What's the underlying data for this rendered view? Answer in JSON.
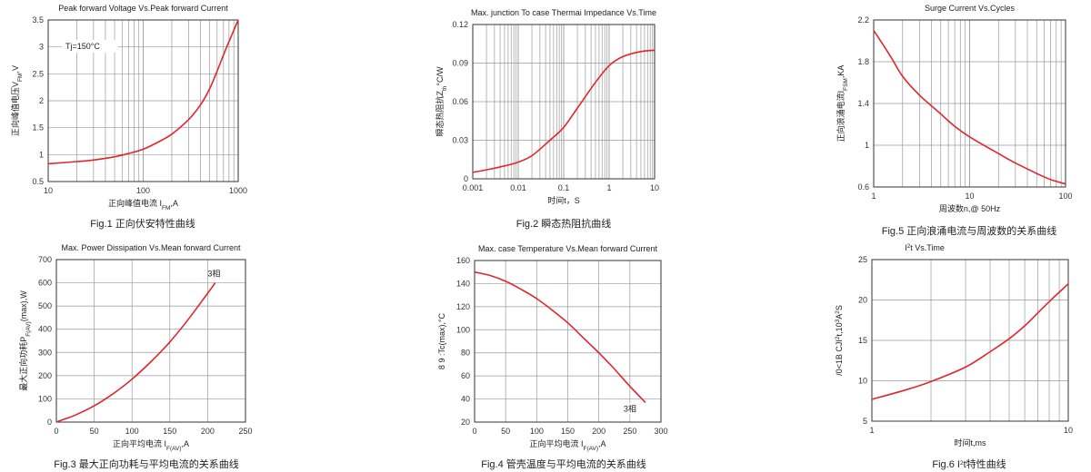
{
  "chart_data": [
    {
      "id": "fig1",
      "type": "line",
      "title": "Peak forward Voltage Vs.Peak forward Current",
      "xlabel": "正向峰值电流 I",
      "xlabel_sub": "FM",
      "xlabel_suffix": ",A",
      "ylabel": "正向峰值电压V",
      "ylabel_sub": "FM",
      "ylabel_suffix": ",V",
      "caption": "Fig.1 正向伏安特性曲线",
      "annotation": "Tj=150°C",
      "xscale": "log",
      "xlim": [
        10,
        1000
      ],
      "ylim": [
        0.5,
        3.5
      ],
      "x_ticks": [
        10,
        100,
        1000
      ],
      "x_tick_labels": [
        "10",
        "100",
        "1000"
      ],
      "y_ticks": [
        0.5,
        1,
        1.5,
        2,
        2.5,
        3,
        3.5
      ],
      "y_tick_labels": [
        "0.5",
        "1",
        "1.5",
        "2",
        "2.5",
        "3",
        "3.5"
      ],
      "series": [
        {
          "x": [
            10,
            20,
            30,
            50,
            70,
            100,
            150,
            200,
            300,
            400,
            500,
            600,
            700,
            800,
            1000
          ],
          "y": [
            0.83,
            0.87,
            0.9,
            0.96,
            1.02,
            1.1,
            1.25,
            1.38,
            1.65,
            1.92,
            2.22,
            2.55,
            2.85,
            3.1,
            3.5
          ]
        }
      ]
    },
    {
      "id": "fig2",
      "type": "line",
      "title": "Max. junction To case Thermai Impedance Vs.Time",
      "xlabel": "时间t，S",
      "ylabel": "瞬态热阻抗Z",
      "ylabel_sub": "th",
      "ylabel_suffix": "°C/W",
      "caption": "Fig.2 瞬态热阻抗曲线",
      "xscale": "log",
      "xlim": [
        0.001,
        10
      ],
      "ylim": [
        0,
        0.12
      ],
      "x_ticks": [
        0.001,
        0.01,
        0.1,
        1,
        10
      ],
      "x_tick_labels": [
        "0.001",
        "0.01",
        "0.1",
        "1",
        "10"
      ],
      "y_ticks": [
        0,
        0.03,
        0.06,
        0.09,
        0.12
      ],
      "y_tick_labels": [
        "0",
        "0.03",
        "0.06",
        "0.09",
        "0.12"
      ],
      "series": [
        {
          "x": [
            0.001,
            0.002,
            0.005,
            0.01,
            0.02,
            0.05,
            0.1,
            0.2,
            0.5,
            1,
            2,
            5,
            10
          ],
          "y": [
            0.005,
            0.007,
            0.01,
            0.013,
            0.018,
            0.03,
            0.04,
            0.055,
            0.075,
            0.088,
            0.095,
            0.099,
            0.1
          ]
        }
      ]
    },
    {
      "id": "fig5",
      "type": "line",
      "title": "Surge Current Vs.Cycles",
      "xlabel": "周波数n,@ 50Hz",
      "ylabel": "正向浪涌电流I",
      "ylabel_sub": "FSM",
      "ylabel_suffix": ",KA",
      "caption": "Fig.5 正向浪涌电流与周波数的关系曲线",
      "xscale": "log",
      "xlim": [
        1,
        100
      ],
      "ylim": [
        0.6,
        2.2
      ],
      "x_ticks": [
        1,
        10,
        100
      ],
      "x_tick_labels": [
        "1",
        "10",
        "100"
      ],
      "y_ticks": [
        0.6,
        1,
        1.4,
        1.8,
        2.2
      ],
      "y_tick_labels": [
        "0.6",
        "1",
        "1.4",
        "1.8",
        "2.2"
      ],
      "series": [
        {
          "x": [
            1,
            1.5,
            2,
            3,
            5,
            7,
            10,
            20,
            30,
            50,
            70,
            100
          ],
          "y": [
            2.1,
            1.85,
            1.66,
            1.48,
            1.3,
            1.18,
            1.08,
            0.92,
            0.83,
            0.73,
            0.67,
            0.63
          ]
        }
      ]
    },
    {
      "id": "fig3",
      "type": "line",
      "title": "Max. Power Dissipation Vs.Mean forward Current",
      "xlabel": "正向平均电流 I",
      "xlabel_sub": "F(AV)",
      "xlabel_suffix": ",A",
      "ylabel": "最大正向功耗P",
      "ylabel_sub": "F(AV)",
      "ylabel_suffix": "(max),W",
      "caption": "Fig.3 最大正向功耗与平均电流的关系曲线",
      "annotation": "3相",
      "xlim": [
        0,
        250
      ],
      "ylim": [
        0,
        700
      ],
      "x_ticks": [
        0,
        50,
        100,
        150,
        200,
        250
      ],
      "x_tick_labels": [
        "0",
        "50",
        "100",
        "150",
        "200",
        "250"
      ],
      "y_ticks": [
        0,
        100,
        200,
        300,
        400,
        500,
        600,
        700
      ],
      "y_tick_labels": [
        "0",
        "100",
        "200",
        "300",
        "400",
        "500",
        "600",
        "700"
      ],
      "series": [
        {
          "x": [
            0,
            10,
            25,
            50,
            75,
            100,
            125,
            150,
            175,
            200,
            210
          ],
          "y": [
            0,
            12,
            30,
            70,
            122,
            185,
            260,
            345,
            445,
            555,
            600
          ]
        }
      ]
    },
    {
      "id": "fig4",
      "type": "line",
      "title": "Max. case Temperature Vs.Mean forward Current",
      "xlabel": "正向平均电流 I",
      "xlabel_sub": "F(AV)",
      "xlabel_suffix": ",A",
      "ylabel": "Tc(max),°C",
      "ylabel_prefix": "8 9 :",
      "caption": "Fig.4 管壳温度与平均电流的关系曲线",
      "annotation": "3相",
      "xlim": [
        0,
        300
      ],
      "ylim": [
        20,
        160
      ],
      "x_ticks": [
        0,
        50,
        100,
        150,
        200,
        250,
        300
      ],
      "x_tick_labels": [
        "0",
        "50",
        "100",
        "150",
        "200",
        "250",
        "300"
      ],
      "y_ticks": [
        20,
        40,
        60,
        80,
        100,
        120,
        140,
        160
      ],
      "y_tick_labels": [
        "20",
        "40",
        "60",
        "80",
        "100",
        "120",
        "140",
        "160"
      ],
      "series": [
        {
          "x": [
            0,
            25,
            50,
            75,
            100,
            125,
            150,
            175,
            200,
            225,
            250,
            275
          ],
          "y": [
            150,
            147,
            142,
            135,
            127,
            117,
            106,
            93,
            80,
            66,
            51,
            37
          ]
        }
      ]
    },
    {
      "id": "fig6",
      "type": "line",
      "title": "I",
      "title_sup": "2",
      "title_suffix": "t  Vs.Time",
      "xlabel": "时间t,ms",
      "ylabel": "I",
      "ylabel_sup": "2",
      "ylabel_mid": "t,10",
      "ylabel_sup2": "3",
      "ylabel_mid2": "A",
      "ylabel_sup3": "2",
      "ylabel_suffix": "S",
      "ylabel_prefix": "/0<1B  CJ",
      "caption": "Fig.6 I",
      "caption_sup": "2",
      "caption_suffix": "t特性曲线",
      "xscale": "log",
      "xlim": [
        1,
        10
      ],
      "ylim": [
        5,
        25
      ],
      "x_ticks": [
        1,
        10
      ],
      "x_tick_labels": [
        "1",
        "10"
      ],
      "y_ticks": [
        5,
        10,
        15,
        20,
        25
      ],
      "y_tick_labels": [
        "5",
        "10",
        "15",
        "20",
        "25"
      ],
      "series": [
        {
          "x": [
            1,
            1.5,
            2,
            3,
            4,
            5,
            6,
            7,
            8,
            10
          ],
          "y": [
            7.7,
            8.9,
            9.9,
            11.7,
            13.6,
            15.2,
            16.8,
            18.4,
            19.8,
            22
          ]
        }
      ]
    }
  ]
}
